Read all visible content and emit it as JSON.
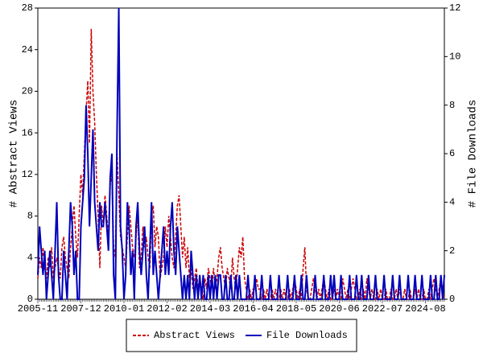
{
  "chart_data": {
    "type": "line",
    "y_label": "# Abstract Views",
    "y2_label": "# File Downloads",
    "categories": [
      "2005-11",
      null,
      null,
      null,
      null,
      null,
      null,
      null,
      null,
      null,
      null,
      null,
      null,
      null,
      null,
      null,
      null,
      null,
      null,
      null,
      null,
      null,
      null,
      null,
      null,
      "2007-12",
      null,
      null,
      null,
      null,
      null,
      null,
      null,
      null,
      null,
      null,
      null,
      null,
      null,
      null,
      null,
      null,
      null,
      null,
      null,
      null,
      null,
      null,
      null,
      null,
      "2010-01",
      null,
      null,
      null,
      null,
      null,
      null,
      null,
      null,
      null,
      null,
      null,
      null,
      null,
      null,
      null,
      null,
      null,
      null,
      null,
      null,
      null,
      null,
      null,
      null,
      "2012-02",
      null,
      null,
      null,
      null,
      null,
      null,
      null,
      null,
      null,
      null,
      null,
      null,
      null,
      null,
      null,
      null,
      null,
      null,
      null,
      null,
      null,
      null,
      null,
      null,
      "2014-03",
      null,
      null,
      null,
      null,
      null,
      null,
      null,
      null,
      null,
      null,
      null,
      null,
      null,
      null,
      null,
      null,
      null,
      null,
      null,
      null,
      null,
      null,
      null,
      null,
      "2016-04",
      null,
      null,
      null,
      null,
      null,
      null,
      null,
      null,
      null,
      null,
      null,
      null,
      null,
      null,
      null,
      null,
      null,
      null,
      null,
      null,
      null,
      null,
      null,
      null,
      "2018-05",
      null,
      null,
      null,
      null,
      null,
      null,
      null,
      null,
      null,
      null,
      null,
      null,
      null,
      null,
      null,
      null,
      null,
      null,
      null,
      null,
      null,
      null,
      null,
      null,
      "2020-06",
      null,
      null,
      null,
      null,
      null,
      null,
      null,
      null,
      null,
      null,
      null,
      null,
      null,
      null,
      null,
      null,
      null,
      null,
      null,
      null,
      null,
      null,
      null,
      null,
      "2022-07",
      null,
      null,
      null,
      null,
      null,
      null,
      null,
      null,
      null,
      null,
      null,
      null,
      null,
      null,
      null,
      null,
      null,
      null,
      null,
      null,
      null,
      null,
      null,
      null,
      "2024-08",
      null,
      null,
      null,
      null,
      null,
      null,
      null,
      null,
      null,
      null,
      null
    ],
    "series": [
      {
        "name": "Abstract Views",
        "color": "#cc0000",
        "dash": true,
        "axis": "y",
        "values": [
          2,
          4,
          3,
          5,
          3,
          2,
          4,
          3,
          5,
          2,
          3,
          4,
          3,
          2,
          5,
          6,
          4,
          3,
          2,
          5,
          7,
          9,
          6,
          4,
          8,
          12,
          10,
          14,
          18,
          21,
          15,
          26,
          20,
          17,
          12,
          8,
          3,
          9,
          7,
          10,
          8,
          6,
          11,
          12,
          5,
          4,
          14,
          10,
          6,
          5,
          4,
          3,
          6,
          9,
          7,
          5,
          4,
          6,
          8,
          3,
          4,
          7,
          5,
          6,
          4,
          3,
          8,
          9,
          5,
          7,
          6,
          2,
          3,
          4,
          7,
          5,
          8,
          6,
          4,
          3,
          6,
          9,
          10,
          7,
          4,
          6,
          3,
          5,
          2,
          3,
          1,
          2,
          3,
          1,
          2,
          1,
          0,
          2,
          1,
          3,
          2,
          1,
          3,
          1,
          2,
          4,
          5,
          3,
          2,
          1,
          3,
          2,
          1,
          4,
          2,
          1,
          3,
          5,
          4,
          6,
          2,
          1,
          0,
          1,
          0,
          1,
          1,
          2,
          1,
          1,
          0,
          1,
          0,
          1,
          0,
          0,
          1,
          0,
          1,
          0,
          0,
          1,
          0,
          1,
          0,
          0,
          1,
          0,
          1,
          2,
          1,
          0,
          1,
          0,
          3,
          5,
          1,
          0,
          0,
          1,
          2,
          1,
          0,
          1,
          0,
          1,
          2,
          1,
          0,
          1,
          0,
          0,
          1,
          0,
          1,
          0,
          0,
          2,
          1,
          0,
          1,
          0,
          1,
          2,
          1,
          0,
          0,
          1,
          0,
          1,
          0,
          2,
          1,
          0,
          1,
          0,
          0,
          1,
          0,
          1,
          0,
          0,
          1,
          0,
          0,
          1,
          0,
          0,
          1,
          0,
          1,
          0,
          0,
          1,
          0,
          0,
          1,
          0,
          0,
          1,
          0,
          1,
          0,
          0,
          1,
          0,
          0,
          1,
          0,
          1,
          2,
          1,
          0,
          1,
          2,
          1,
          0
        ]
      },
      {
        "name": "File Downloads",
        "color": "#0000bb",
        "dash": false,
        "axis": "y2",
        "values": [
          1,
          3,
          2,
          1,
          2,
          0,
          1,
          2,
          1,
          0,
          2,
          4,
          1,
          0,
          0,
          2,
          1,
          0,
          2,
          4,
          3,
          1,
          2,
          0,
          0,
          3,
          4,
          5,
          8,
          6,
          3,
          5,
          7,
          4,
          3,
          2,
          4,
          3,
          3,
          4,
          3,
          2,
          5,
          6,
          1,
          0,
          7,
          12,
          3,
          2,
          0,
          1,
          4,
          3,
          1,
          2,
          0,
          3,
          4,
          2,
          1,
          2,
          3,
          1,
          0,
          2,
          4,
          1,
          2,
          1,
          0,
          1,
          2,
          3,
          1,
          2,
          1,
          3,
          4,
          2,
          1,
          3,
          2,
          1,
          0,
          1,
          0,
          1,
          0,
          2,
          1,
          0,
          1,
          0,
          1,
          0,
          1,
          0,
          0,
          1,
          0,
          1,
          0,
          1,
          0,
          1,
          1,
          0,
          0,
          1,
          0,
          0,
          1,
          0,
          0,
          1,
          0,
          1,
          0,
          0,
          0,
          0,
          1,
          0,
          0,
          0,
          1,
          0,
          0,
          0,
          1,
          0,
          0,
          0,
          0,
          1,
          0,
          0,
          0,
          0,
          1,
          0,
          0,
          0,
          0,
          1,
          0,
          0,
          0,
          1,
          0,
          0,
          0,
          1,
          0,
          0,
          1,
          0,
          0,
          0,
          0,
          1,
          0,
          0,
          0,
          0,
          1,
          0,
          0,
          0,
          1,
          0,
          1,
          0,
          0,
          0,
          1,
          0,
          0,
          0,
          0,
          1,
          0,
          0,
          0,
          1,
          0,
          0,
          1,
          0,
          0,
          0,
          1,
          0,
          0,
          0,
          1,
          0,
          0,
          0,
          0,
          1,
          0,
          0,
          0,
          0,
          1,
          0,
          0,
          0,
          1,
          0,
          0,
          0,
          0,
          1,
          0,
          0,
          0,
          1,
          0,
          0,
          0,
          1,
          0,
          0,
          0,
          0,
          1,
          0,
          0,
          1,
          0,
          0,
          1,
          0,
          1
        ]
      }
    ],
    "ylim": [
      0,
      28
    ],
    "yticks": [
      0,
      4,
      8,
      12,
      16,
      20,
      24,
      28
    ],
    "y2lim": [
      0,
      12
    ],
    "y2ticks": [
      0,
      2,
      4,
      6,
      8,
      10,
      12
    ],
    "grid": false,
    "legend": "bottom"
  }
}
